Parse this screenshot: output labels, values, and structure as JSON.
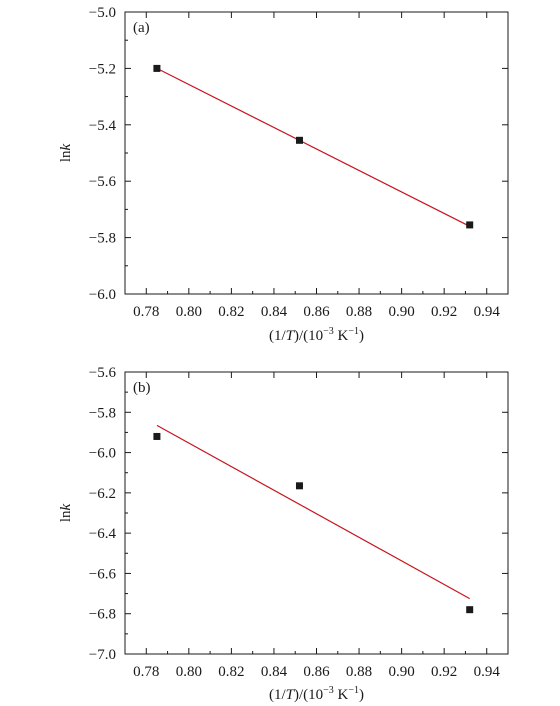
{
  "chart_data": [
    {
      "type": "scatter",
      "panel_label": "(a)",
      "xlabel_parts": [
        "(1/",
        "T",
        ")/(10",
        "−3",
        " K",
        "−1",
        ")"
      ],
      "ylabel_parts": [
        "ln",
        "k"
      ],
      "xlim": [
        0.77,
        0.95
      ],
      "ylim": [
        -6.0,
        -5.0
      ],
      "xticks": [
        0.78,
        0.8,
        0.82,
        0.84,
        0.86,
        0.88,
        0.9,
        0.92,
        0.94
      ],
      "xtick_labels": [
        "0.78",
        "0.80",
        "0.82",
        "0.84",
        "0.86",
        "0.88",
        "0.90",
        "0.92",
        "0.94"
      ],
      "yticks": [
        -5.0,
        -5.2,
        -5.4,
        -5.6,
        -5.8,
        -6.0
      ],
      "ytick_labels": [
        "−5.0",
        "−5.2",
        "−5.4",
        "−5.6",
        "−5.8",
        "−6.0"
      ],
      "series": [
        {
          "x": [
            0.785,
            0.852,
            0.932
          ],
          "y": [
            -5.2,
            -5.455,
            -5.755
          ]
        }
      ],
      "fit_line": {
        "x": [
          0.785,
          0.932
        ],
        "y": [
          -5.2,
          -5.76
        ]
      },
      "colors": {
        "points": "#1a1a1a",
        "line": "#c8141e"
      },
      "grid": false
    },
    {
      "type": "scatter",
      "panel_label": "(b)",
      "xlabel_parts": [
        "(1/",
        "T",
        ")/(10",
        "−3",
        " K",
        "−1",
        ")"
      ],
      "ylabel_parts": [
        "ln",
        "k"
      ],
      "xlim": [
        0.77,
        0.95
      ],
      "ylim": [
        -7.0,
        -5.6
      ],
      "xticks": [
        0.78,
        0.8,
        0.82,
        0.84,
        0.86,
        0.88,
        0.9,
        0.92,
        0.94
      ],
      "xtick_labels": [
        "0.78",
        "0.80",
        "0.82",
        "0.84",
        "0.86",
        "0.88",
        "0.90",
        "0.92",
        "0.94"
      ],
      "yticks": [
        -5.6,
        -5.8,
        -6.0,
        -6.2,
        -6.4,
        -6.6,
        -6.8,
        -7.0
      ],
      "ytick_labels": [
        "−5.6",
        "−5.8",
        "−6.0",
        "−6.2",
        "−6.4",
        "−6.6",
        "−6.8",
        "−7.0"
      ],
      "series": [
        {
          "x": [
            0.785,
            0.852,
            0.932
          ],
          "y": [
            -5.92,
            -6.165,
            -6.78
          ]
        }
      ],
      "fit_line": {
        "x": [
          0.785,
          0.932
        ],
        "y": [
          -5.865,
          -6.725
        ]
      },
      "colors": {
        "points": "#1a1a1a",
        "line": "#c8141e"
      },
      "grid": false
    }
  ]
}
